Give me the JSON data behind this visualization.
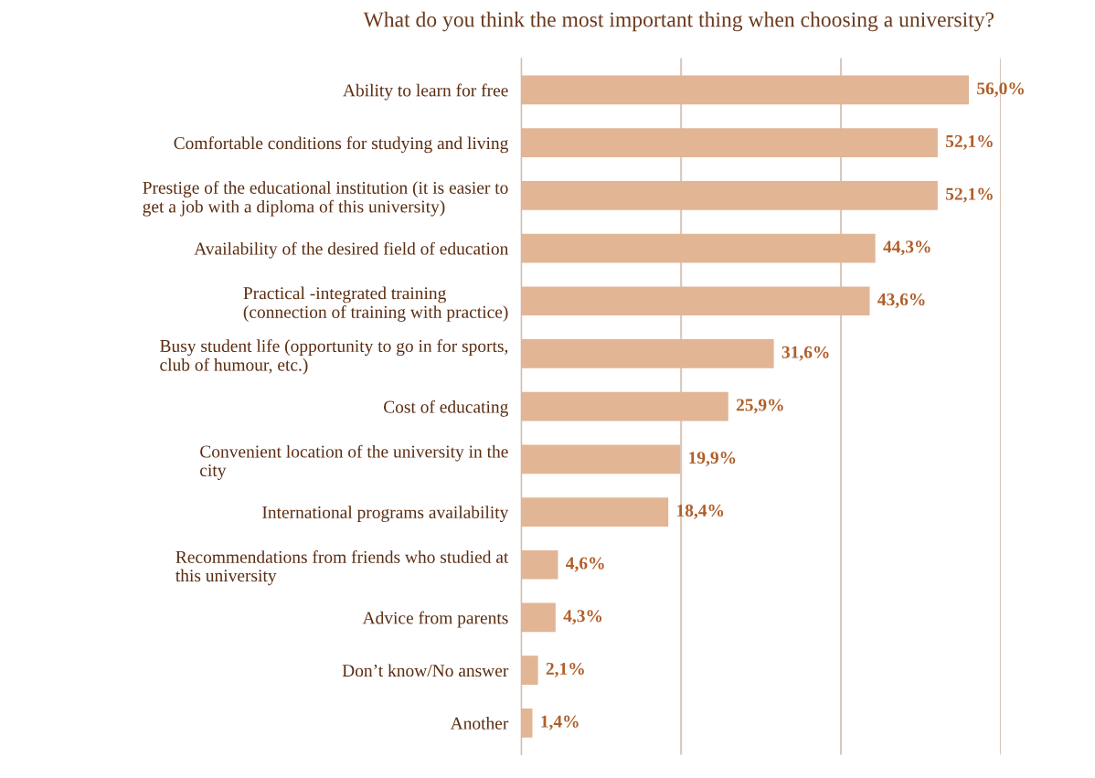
{
  "chart_data": {
    "type": "bar",
    "orientation": "horizontal",
    "title": "What do you think the most important thing when choosing a university?",
    "categories": [
      "Ability to learn for free",
      "Comfortable conditions for studying and living",
      "Prestige of the educational institution (it is easier to\nget a job with a diploma of this university)",
      "Availability of the desired field of education",
      "Practical -integrated training\n(connection of training with practice)",
      "Busy student life (opportunity to go in for sports,\nclub of humour, etc.)",
      "Cost of educating",
      "Convenient location of the university in the\ncity",
      "International programs availability",
      "Recommendations from friends who studied at\nthis university",
      "Advice from parents",
      "Don’t know/No answer",
      "Another"
    ],
    "values": [
      56.0,
      52.1,
      52.1,
      44.3,
      43.6,
      31.6,
      25.9,
      19.9,
      18.4,
      4.6,
      4.3,
      2.1,
      1.4
    ],
    "value_labels": [
      "56,0%",
      "52,1%",
      "52,1%",
      "44,3%",
      "43,6%",
      "31,6%",
      "25,9%",
      "19,9%",
      "18,4%",
      "4,6%",
      "4,3%",
      "2,1%",
      "1,4%"
    ],
    "color": "#e2b595",
    "xlim": [
      0,
      60
    ],
    "xticks": [
      {
        "value": 0,
        "label": null
      },
      {
        "value": 20,
        "label": null
      },
      {
        "value": 40,
        "label": null
      },
      {
        "value": 60,
        "label": null
      }
    ],
    "grid": "x",
    "tick_labels": "y"
  }
}
